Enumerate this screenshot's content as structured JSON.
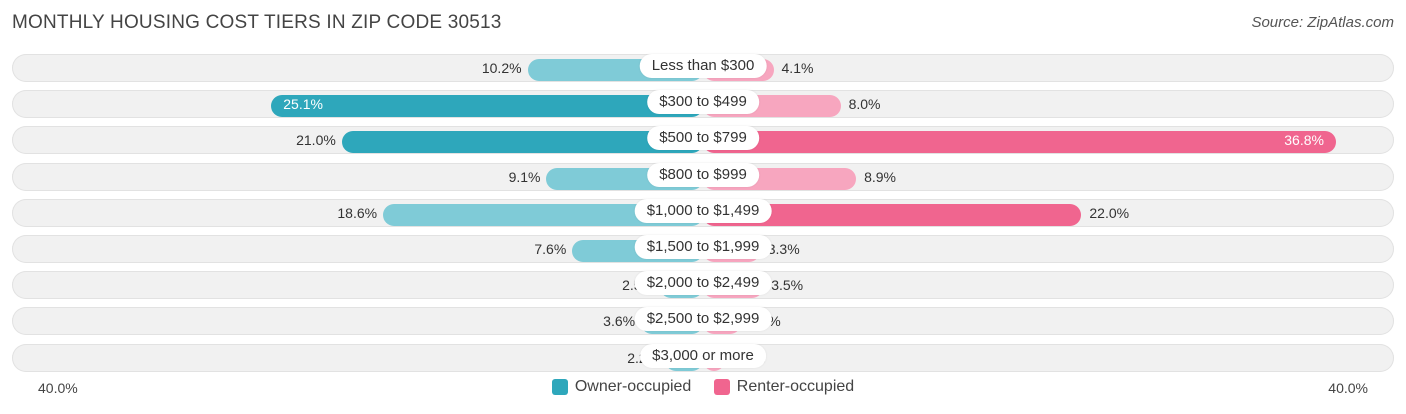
{
  "title": "MONTHLY HOUSING COST TIERS IN ZIP CODE 30513",
  "source": "Source: ZipAtlas.com",
  "colors": {
    "owner": "#2ea7bb",
    "owner_light": "#7fcbd7",
    "renter": "#f0658f",
    "renter_light": "#f7a6bf"
  },
  "chart_data": {
    "type": "bar",
    "categories": [
      "Less than $300",
      "$300 to $499",
      "$500 to $799",
      "$800 to $999",
      "$1,000 to $1,499",
      "$1,500 to $1,999",
      "$2,000 to $2,499",
      "$2,500 to $2,999",
      "$3,000 or more"
    ],
    "series": [
      {
        "name": "Owner-occupied",
        "values": [
          10.2,
          25.1,
          21.0,
          9.1,
          18.6,
          7.6,
          2.5,
          3.6,
          2.2
        ],
        "labels": [
          "10.2%",
          "25.1%",
          "21.0%",
          "9.1%",
          "18.6%",
          "7.6%",
          "2.5%",
          "3.6%",
          "2.2%"
        ]
      },
      {
        "name": "Renter-occupied",
        "values": [
          4.1,
          8.0,
          36.8,
          8.9,
          22.0,
          3.3,
          3.5,
          2.2,
          1.3
        ],
        "labels": [
          "4.1%",
          "8.0%",
          "36.8%",
          "8.9%",
          "22.0%",
          "3.3%",
          "3.5%",
          "2.2%",
          "1.3%"
        ]
      }
    ],
    "xlim": [
      -40,
      40
    ],
    "axis_labels": {
      "left": "40.0%",
      "right": "40.0%"
    },
    "legend_position": "bottom-center"
  }
}
